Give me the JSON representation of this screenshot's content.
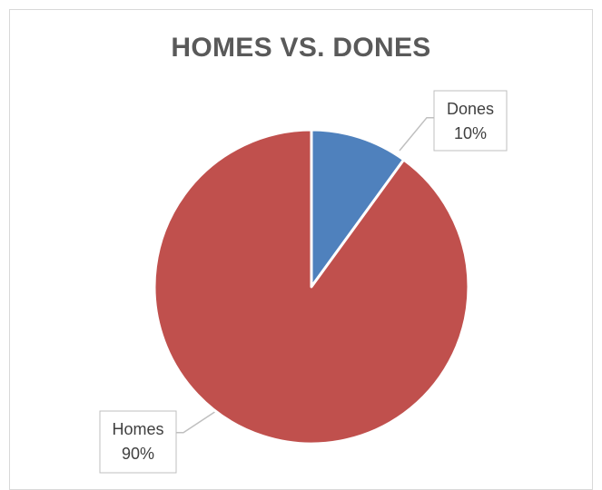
{
  "chart_data": {
    "type": "pie",
    "title": "HOMES VS. DONES",
    "categories": [
      "Dones",
      "Homes"
    ],
    "values": [
      10,
      90
    ],
    "labels": [
      {
        "category": "Dones",
        "percent": "10%"
      },
      {
        "category": "Homes",
        "percent": "90%"
      }
    ],
    "colors": [
      "#4f81bd",
      "#c0504d"
    ],
    "start_angle_deg": 0,
    "direction": "clockwise",
    "legend": "none"
  }
}
